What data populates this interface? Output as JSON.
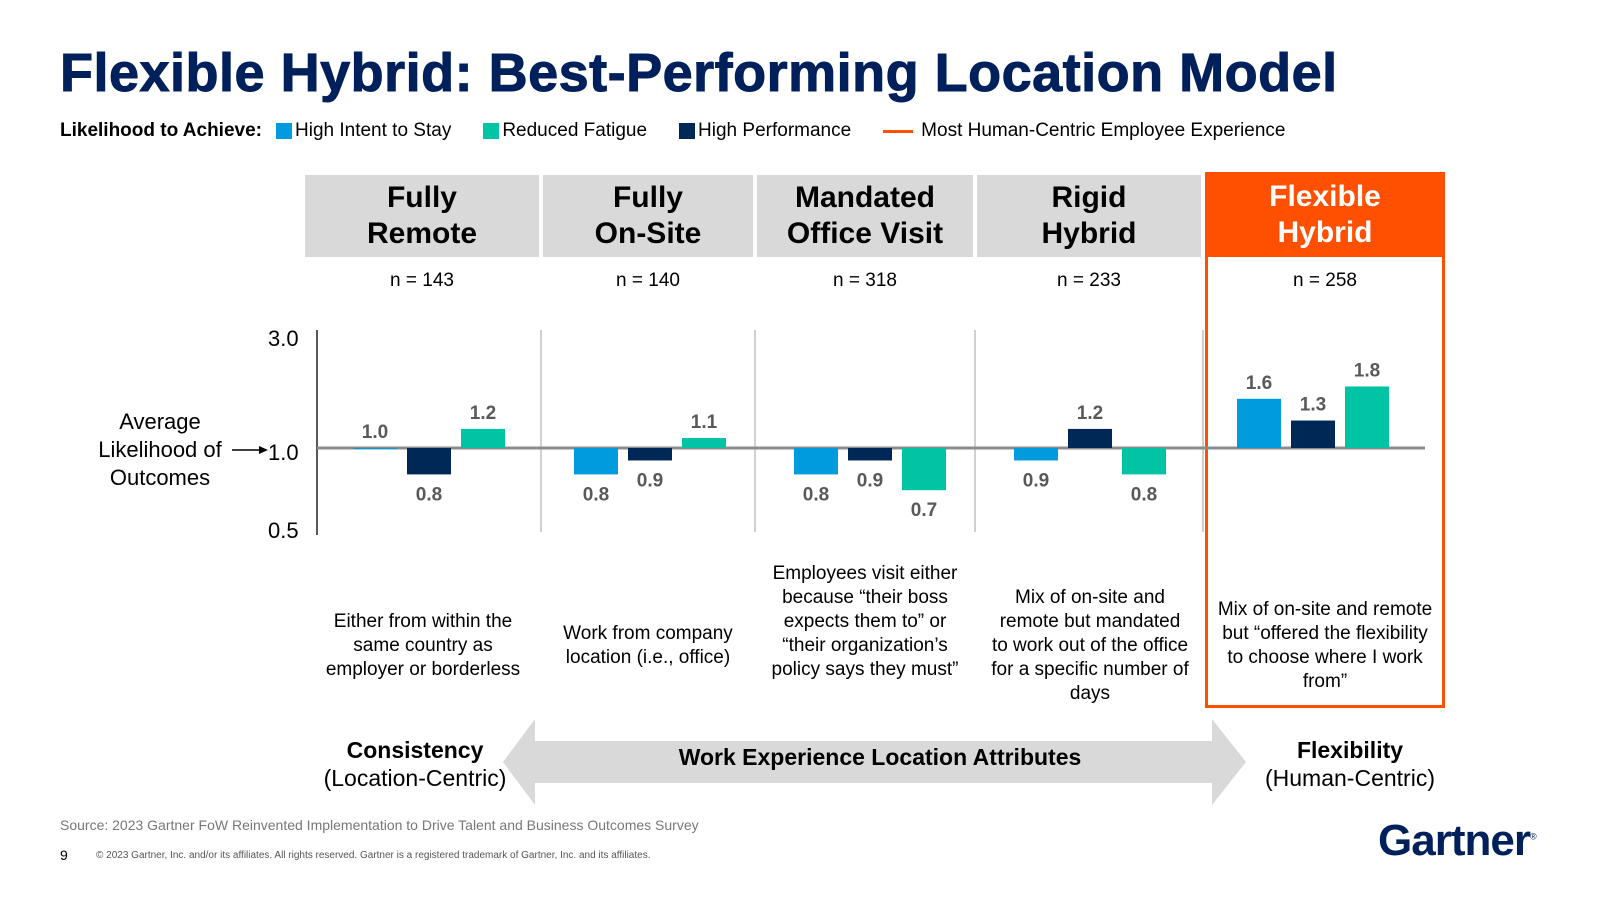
{
  "title": "Flexible Hybrid: Best-Performing Location Model",
  "legend": {
    "label": "Likelihood to Achieve:",
    "items": [
      {
        "name": "High Intent to Stay",
        "color": "#009ade",
        "shape": "square"
      },
      {
        "name": "Reduced Fatigue",
        "color": "#00c4a3",
        "shape": "square"
      },
      {
        "name": "High Performance",
        "color": "#002856",
        "shape": "square"
      },
      {
        "name": "Most Human-Centric Employee Experience",
        "color": "#fe5000",
        "shape": "line"
      }
    ]
  },
  "columns": [
    {
      "header_l1": "Fully",
      "header_l2": "Remote",
      "n": "n = 143",
      "description": "Either from within the same country as employer or borderless"
    },
    {
      "header_l1": "Fully",
      "header_l2": "On-Site",
      "n": "n = 140",
      "description": "Work from company location (i.e., office)"
    },
    {
      "header_l1": "Mandated",
      "header_l2": "Office Visit",
      "n": "n = 318",
      "description": "Employees visit either because “their boss expects them to” or “their organization’s policy says they must”"
    },
    {
      "header_l1": "Rigid",
      "header_l2": "Hybrid",
      "n": "n = 233",
      "description": "Mix of on-site and remote but mandated to work out of the office for a specific number of days"
    },
    {
      "header_l1": "Flexible",
      "header_l2": "Hybrid",
      "n": "n = 258",
      "description": "Mix of on-site and remote but “offered the flexibility to choose where I work from”"
    }
  ],
  "chart_data": {
    "type": "bar",
    "categories": [
      "Fully Remote",
      "Fully On-Site",
      "Mandated Office Visit",
      "Rigid Hybrid",
      "Flexible Hybrid"
    ],
    "series": [
      {
        "name": "High Intent to Stay",
        "color": "#009ade",
        "values": [
          1.0,
          0.8,
          0.8,
          0.9,
          1.6
        ],
        "labels": [
          "1.0",
          "0.8",
          "0.8",
          "0.9",
          "1.6"
        ]
      },
      {
        "name": "High Performance",
        "color": "#002856",
        "values": [
          0.8,
          0.9,
          0.9,
          1.2,
          1.3
        ],
        "labels": [
          "0.8",
          "0.9",
          "0.9",
          "1.2",
          "1.3"
        ]
      },
      {
        "name": "Reduced Fatigue",
        "color": "#00c4a3",
        "values": [
          1.2,
          1.1,
          0.7,
          0.8,
          1.8
        ],
        "labels": [
          "1.2",
          "1.1",
          "0.7",
          "0.8",
          "1.8"
        ]
      }
    ],
    "baseline": 1.0,
    "highlight_category": "Flexible Hybrid",
    "ylabel": "Average Likelihood of Outcomes",
    "ytick_labels": [
      "3.0",
      "1.0",
      "0.5"
    ],
    "yscale": "log",
    "ylim": [
      0.5,
      3.0
    ]
  },
  "axis_attributes": {
    "left_bold": "Consistency",
    "left_sub": "(Location-Centric)",
    "center": "Work Experience Location Attributes",
    "right_bold": "Flexibility",
    "right_sub": "(Human-Centric)"
  },
  "source": "Source: 2023 Gartner FoW Reinvented Implementation to Drive Talent and Business Outcomes Survey",
  "page_number": "9",
  "copyright": "© 2023 Gartner, Inc. and/or its affiliates. All rights reserved. Gartner is a registered trademark of Gartner, Inc. and its affiliates.",
  "logo": {
    "text": "Gartner",
    "mark": "®"
  }
}
